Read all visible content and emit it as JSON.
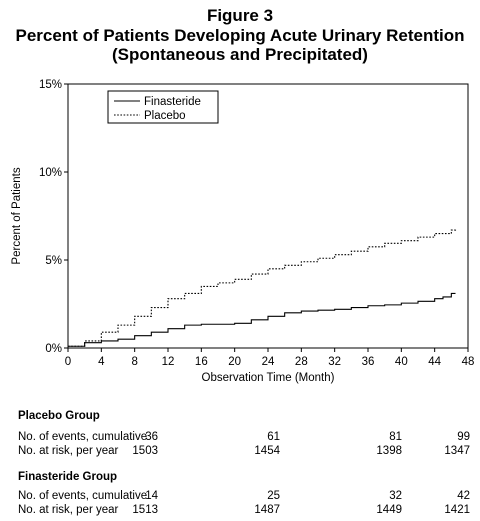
{
  "figure_label": "Figure 3",
  "title_line1": "Percent of Patients Developing Acute Urinary Retention",
  "title_line2": "(Spontaneous and Precipitated)",
  "chart_data": {
    "type": "line",
    "xlabel": "Observation Time (Month)",
    "ylabel": "Percent of Patients",
    "xlim": [
      0,
      48
    ],
    "ylim": [
      0,
      15
    ],
    "x_ticks": [
      0,
      4,
      8,
      12,
      16,
      20,
      24,
      28,
      32,
      36,
      40,
      44,
      48
    ],
    "y_ticks": [
      0,
      5,
      10,
      15
    ],
    "y_tick_labels": [
      "0%",
      "5%",
      "10%",
      "15%"
    ],
    "legend_position": "top-left",
    "grid": false,
    "series": [
      {
        "name": "Finasteride",
        "style": "solid",
        "x": [
          0,
          2,
          4,
          6,
          8,
          10,
          12,
          14,
          16,
          18,
          20,
          22,
          24,
          26,
          28,
          30,
          32,
          34,
          36,
          38,
          40,
          42,
          44,
          45,
          46,
          46.5
        ],
        "y": [
          0.1,
          0.3,
          0.4,
          0.5,
          0.7,
          0.9,
          1.1,
          1.3,
          1.35,
          1.35,
          1.4,
          1.6,
          1.8,
          2.0,
          2.1,
          2.15,
          2.2,
          2.3,
          2.4,
          2.45,
          2.55,
          2.65,
          2.8,
          2.9,
          3.1,
          3.1
        ]
      },
      {
        "name": "Placebo",
        "style": "dotted",
        "x": [
          0,
          2,
          4,
          6,
          8,
          10,
          12,
          14,
          16,
          18,
          20,
          22,
          24,
          26,
          28,
          30,
          32,
          34,
          36,
          38,
          40,
          42,
          44,
          46,
          46.5
        ],
        "y": [
          0.1,
          0.4,
          0.9,
          1.3,
          1.8,
          2.3,
          2.8,
          3.1,
          3.5,
          3.7,
          3.9,
          4.2,
          4.5,
          4.7,
          4.9,
          5.1,
          5.3,
          5.5,
          5.75,
          5.95,
          6.1,
          6.3,
          6.5,
          6.7,
          6.8
        ]
      }
    ]
  },
  "table": {
    "groups": [
      {
        "name": "Placebo Group",
        "rows": [
          {
            "label": "No. of events, cumulative",
            "values": [
              "36",
              "61",
              "81",
              "99"
            ]
          },
          {
            "label": "No. at risk, per year",
            "values": [
              "1503",
              "1454",
              "1398",
              "1347"
            ]
          }
        ]
      },
      {
        "name": "Finasteride Group",
        "rows": [
          {
            "label": "No. of events, cumulative",
            "values": [
              "14",
              "25",
              "32",
              "42"
            ]
          },
          {
            "label": "No. at risk, per year",
            "values": [
              "1513",
              "1487",
              "1449",
              "1421"
            ]
          }
        ]
      }
    ]
  }
}
